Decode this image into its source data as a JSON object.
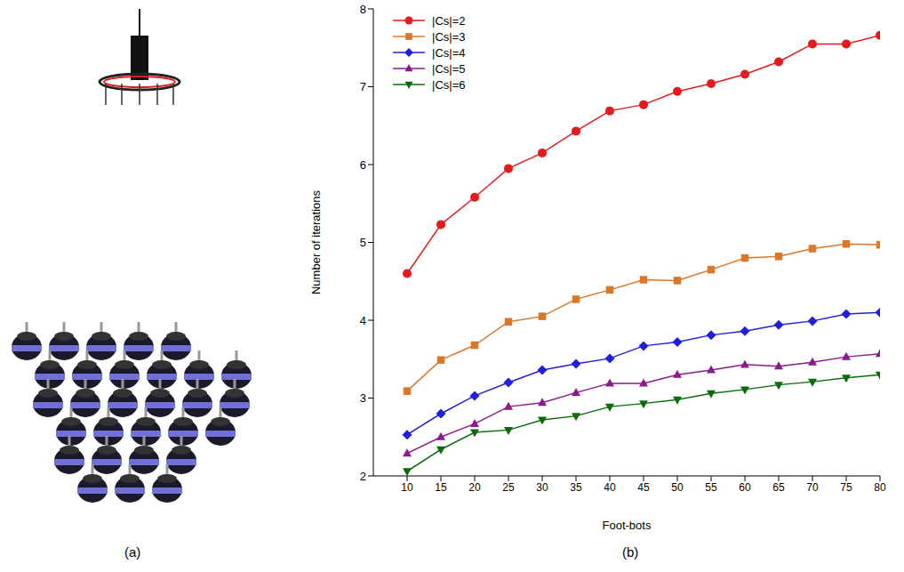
{
  "panel_labels": [
    "(a)",
    "(b)"
  ],
  "chart_data": {
    "type": "line",
    "x_label": "Foot-bots",
    "y_label": "Number of iterations",
    "x": [
      10,
      15,
      20,
      25,
      30,
      35,
      40,
      45,
      50,
      55,
      60,
      65,
      70,
      75,
      80
    ],
    "xlim": [
      5,
      80
    ],
    "xticks": [
      10,
      15,
      20,
      25,
      30,
      35,
      40,
      45,
      50,
      55,
      60,
      65,
      70,
      75,
      80
    ],
    "ylim": [
      2,
      8
    ],
    "yticks": [
      2,
      3,
      4,
      5,
      6,
      7,
      8
    ],
    "grid": false,
    "legend": "upper left",
    "series": [
      {
        "name": "|Cs|=2",
        "color": "#e41a1c",
        "marker": "circle",
        "values": [
          4.6,
          5.23,
          5.58,
          5.95,
          6.15,
          6.43,
          6.69,
          6.77,
          6.94,
          7.04,
          7.16,
          7.32,
          7.55,
          7.55,
          7.66
        ]
      },
      {
        "name": "|Cs|=3",
        "color": "#d9782b",
        "marker": "square",
        "values": [
          3.09,
          3.49,
          3.68,
          3.98,
          4.05,
          4.27,
          4.39,
          4.52,
          4.51,
          4.65,
          4.8,
          4.82,
          4.92,
          4.98,
          4.97
        ]
      },
      {
        "name": "|Cs|=4",
        "color": "#1f1fe0",
        "marker": "diamond",
        "values": [
          2.53,
          2.8,
          3.03,
          3.2,
          3.36,
          3.44,
          3.51,
          3.67,
          3.72,
          3.81,
          3.86,
          3.94,
          3.99,
          4.08,
          4.1
        ]
      },
      {
        "name": "|Cs|=5",
        "color": "#8b1a8b",
        "marker": "triangle",
        "values": [
          2.29,
          2.5,
          2.67,
          2.89,
          2.94,
          3.07,
          3.19,
          3.19,
          3.3,
          3.36,
          3.43,
          3.41,
          3.46,
          3.53,
          3.57
        ]
      },
      {
        "name": "|Cs|=6",
        "color": "#0a6b0a",
        "marker": "triangle-down",
        "values": [
          2.06,
          2.34,
          2.56,
          2.59,
          2.72,
          2.77,
          2.89,
          2.93,
          2.98,
          3.06,
          3.11,
          3.17,
          3.21,
          3.26,
          3.3
        ]
      }
    ]
  }
}
